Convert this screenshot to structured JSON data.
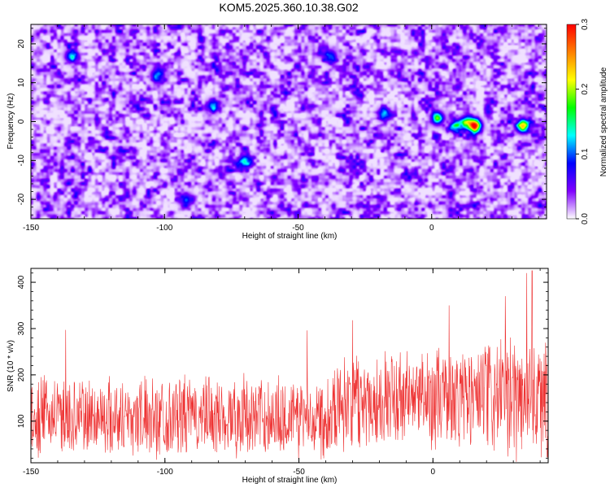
{
  "figure": {
    "title": "KOM5.2025.360.10.38.G02"
  },
  "chart_data": [
    {
      "type": "heatmap",
      "xlabel": "Height of straight line (km)",
      "ylabel": "Frequency (Hz)",
      "xlim": [
        -150,
        43
      ],
      "ylim": [
        -25,
        25
      ],
      "xticks": [
        {
          "value": -150,
          "label": "-150"
        },
        {
          "value": -100,
          "label": "-100"
        },
        {
          "value": -50,
          "label": "-50"
        },
        {
          "value": 0,
          "label": "0"
        }
      ],
      "yticks": [
        {
          "value": -20,
          "label": "-20"
        },
        {
          "value": -10,
          "label": "-10"
        },
        {
          "value": 0,
          "label": "0"
        },
        {
          "value": 10,
          "label": "10"
        },
        {
          "value": 20,
          "label": "20"
        }
      ],
      "colorbar": {
        "label": "Normalized spectral amplitude",
        "range": [
          0,
          0.3
        ],
        "ticks": [
          {
            "value": 0,
            "label": "0.0"
          },
          {
            "value": 0.1,
            "label": "0.1"
          },
          {
            "value": 0.2,
            "label": "0.2"
          },
          {
            "value": 0.3,
            "label": "0.3"
          }
        ],
        "colors": [
          "#ffffff",
          "#8000ff",
          "#0000ff",
          "#00ffff",
          "#00ff00",
          "#ffff00",
          "#ff8000",
          "#ff0000"
        ]
      },
      "background_level": 0.045,
      "peaks": [
        {
          "x": 2,
          "y": 1,
          "amp": 0.16
        },
        {
          "x": 9,
          "y": -1,
          "amp": 0.12
        },
        {
          "x": 13,
          "y": 0,
          "amp": 0.14
        },
        {
          "x": 16,
          "y": -1,
          "amp": 0.29
        },
        {
          "x": 34,
          "y": -1,
          "amp": 0.22
        },
        {
          "x": -135,
          "y": 17,
          "amp": 0.11
        },
        {
          "x": -103,
          "y": 12,
          "amp": 0.1
        },
        {
          "x": -82,
          "y": 4,
          "amp": 0.1
        },
        {
          "x": -70,
          "y": -10,
          "amp": 0.11
        },
        {
          "x": -92,
          "y": -20,
          "amp": 0.09
        },
        {
          "x": -38,
          "y": 17,
          "amp": 0.09
        },
        {
          "x": -18,
          "y": 2,
          "amp": 0.1
        }
      ]
    },
    {
      "type": "line",
      "series": [
        {
          "name": "SNR",
          "color": "#ee3333"
        }
      ],
      "xlabel": "Height of straight line (km)",
      "ylabel": "SNR (10 * v/v)",
      "xlim": [
        -150,
        43
      ],
      "ylim": [
        10,
        430
      ],
      "xticks": [
        {
          "value": -150,
          "label": "-150"
        },
        {
          "value": -100,
          "label": "-100"
        },
        {
          "value": -50,
          "label": "-50"
        },
        {
          "value": 0,
          "label": "0"
        }
      ],
      "yticks": [
        {
          "value": 100,
          "label": "100"
        },
        {
          "value": 200,
          "label": "200"
        },
        {
          "value": 300,
          "label": "300"
        },
        {
          "value": 400,
          "label": "400"
        }
      ],
      "profile": [
        {
          "x": -150,
          "mean": 110,
          "amp": 95
        },
        {
          "x": -40,
          "mean": 110,
          "amp": 100
        },
        {
          "x": -35,
          "mean": 145,
          "amp": 115
        },
        {
          "x": 0,
          "mean": 150,
          "amp": 120
        },
        {
          "x": 20,
          "mean": 150,
          "amp": 140
        },
        {
          "x": 43,
          "mean": 155,
          "amp": 160
        }
      ],
      "peak_points": [
        {
          "x": -137,
          "y": 297
        },
        {
          "x": -47,
          "y": 296
        },
        {
          "x": -30,
          "y": 318
        },
        {
          "x": 6,
          "y": 350
        },
        {
          "x": 27,
          "y": 370
        },
        {
          "x": 35,
          "y": 420
        },
        {
          "x": 37,
          "y": 425
        }
      ]
    }
  ]
}
